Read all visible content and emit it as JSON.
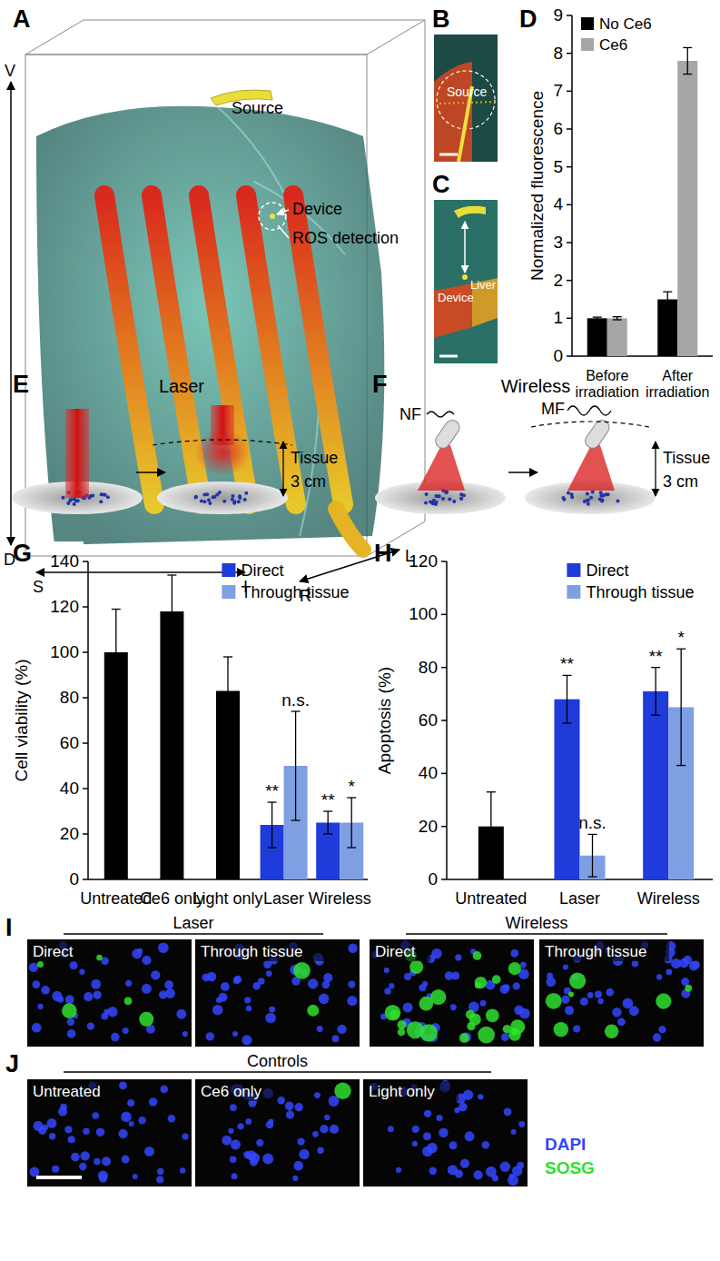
{
  "figure": {
    "panel_a": {
      "label": "A",
      "axis_labels": [
        "V",
        "D",
        "S",
        "I",
        "R",
        "L"
      ],
      "annotations": [
        "Source",
        "Device",
        "ROS detection"
      ]
    },
    "panel_b": {
      "label": "B",
      "annotations": [
        "Source"
      ]
    },
    "panel_c": {
      "label": "C",
      "annotations": [
        "Device",
        "Liver"
      ]
    },
    "panel_e": {
      "label": "E",
      "title": "Laser",
      "annotations": [
        "Tissue",
        "3 cm"
      ]
    },
    "panel_f": {
      "label": "F",
      "title": "Wireless",
      "annotations": [
        "NF",
        "MF",
        "Tissue",
        "3 cm"
      ]
    },
    "panel_i": {
      "label": "I",
      "groups": [
        {
          "title": "Laser",
          "images": [
            "Direct",
            "Through tissue"
          ]
        },
        {
          "title": "Wireless",
          "images": [
            "Direct",
            "Through tissue"
          ]
        }
      ]
    },
    "panel_j": {
      "label": "J",
      "groups": [
        {
          "title": "Controls",
          "images": [
            "Untreated",
            "Ce6 only",
            "Light only"
          ]
        }
      ],
      "legend": [
        {
          "name": "DAPI",
          "color": "#3346ff"
        },
        {
          "name": "SOSG",
          "color": "#2fe02f"
        }
      ]
    }
  },
  "chart_data": [
    {
      "type": "bar",
      "panel_label": "D",
      "ylabel": "Normalized fluorescence",
      "categories": [
        "Before irradiation",
        "After irradiation"
      ],
      "series": [
        {
          "name": "No Ce6",
          "color": "#000000",
          "values": [
            1.0,
            1.5
          ],
          "errors": [
            0.03,
            0.2
          ]
        },
        {
          "name": "Ce6",
          "color": "#a6a6a6",
          "values": [
            1.0,
            7.8
          ],
          "errors": [
            0.04,
            0.35
          ]
        }
      ],
      "ylim": [
        0,
        9
      ],
      "yticks": [
        0,
        1,
        2,
        3,
        4,
        5,
        6,
        7,
        8,
        9
      ],
      "legend": "upper left"
    },
    {
      "type": "bar",
      "panel_label": "G",
      "ylabel": "Cell viability (%)",
      "categories": [
        "Untreated",
        "Ce6 only",
        "Light only",
        "Laser",
        "Wireless"
      ],
      "series": [
        {
          "color": "#000000",
          "values": [
            100,
            118,
            83,
            null,
            null
          ],
          "errors": [
            19,
            16,
            15,
            null,
            null
          ]
        },
        {
          "name": "Direct",
          "color": "#1f3bd9",
          "values": [
            null,
            null,
            null,
            24,
            25
          ],
          "errors": [
            null,
            null,
            null,
            10,
            5
          ],
          "significance": [
            null,
            null,
            null,
            "**",
            "**"
          ]
        },
        {
          "name": "Through tissue",
          "color": "#7f9fe3",
          "values": [
            null,
            null,
            null,
            50,
            25
          ],
          "errors": [
            null,
            null,
            null,
            24,
            11
          ],
          "significance": [
            null,
            null,
            null,
            "n.s.",
            "*"
          ]
        }
      ],
      "ylim": [
        0,
        140
      ],
      "yticks": [
        0,
        20,
        40,
        60,
        80,
        100,
        120,
        140
      ],
      "legend": "upper right"
    },
    {
      "type": "bar",
      "panel_label": "H",
      "ylabel": "Apoptosis (%)",
      "categories": [
        "Untreated",
        "Laser",
        "Wireless"
      ],
      "series": [
        {
          "color": "#000000",
          "values": [
            20,
            null,
            null
          ],
          "errors": [
            13,
            null,
            null
          ]
        },
        {
          "name": "Direct",
          "color": "#1f3bd9",
          "values": [
            null,
            68,
            71
          ],
          "errors": [
            null,
            9,
            9
          ],
          "significance": [
            null,
            "**",
            "**"
          ]
        },
        {
          "name": "Through tissue",
          "color": "#7f9fe3",
          "values": [
            null,
            9,
            65
          ],
          "errors": [
            null,
            8,
            22
          ],
          "significance": [
            null,
            "n.s.",
            "*"
          ]
        }
      ],
      "ylim": [
        0,
        120
      ],
      "yticks": [
        0,
        20,
        40,
        60,
        80,
        100,
        120
      ],
      "legend": "upper right"
    }
  ]
}
